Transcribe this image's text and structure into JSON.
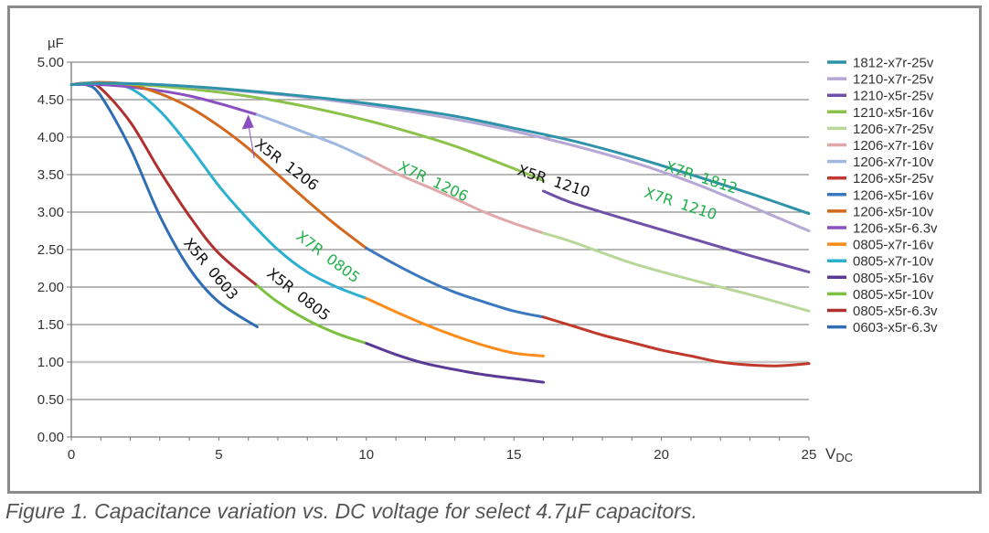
{
  "caption": "Figure 1. Capacitance variation vs. DC voltage for select 4.7µF capacitors.",
  "chart_data": {
    "type": "line",
    "title": "",
    "xlabel": "V",
    "xlabel_sub": "DC",
    "ylabel": "µF",
    "xlim": [
      0,
      25
    ],
    "ylim": [
      0,
      5
    ],
    "xticks": [
      0,
      5,
      10,
      15,
      20,
      25
    ],
    "xtick_labels": [
      "0",
      "5",
      "10",
      "15",
      "20",
      "25"
    ],
    "yticks": [
      0,
      0.5,
      1,
      1.5,
      2,
      2.5,
      3,
      3.5,
      4,
      4.5,
      5
    ],
    "ytick_labels": [
      "0.00",
      "0.50",
      "1.00",
      "1.50",
      "2.00",
      "2.50",
      "3.00",
      "3.50",
      "4.00",
      "4.50",
      "5.00"
    ],
    "grid": true,
    "legend_position": "right",
    "series": [
      {
        "name": "1812-x7r-25v",
        "color": "#2e93a8",
        "x": [
          0,
          1,
          3,
          5,
          7,
          9,
          11,
          13,
          15,
          17,
          19,
          21,
          23,
          25
        ],
        "y": [
          4.7,
          4.72,
          4.7,
          4.65,
          4.58,
          4.5,
          4.4,
          4.28,
          4.12,
          3.95,
          3.74,
          3.5,
          3.25,
          2.98
        ]
      },
      {
        "name": "1210-x7r-25v",
        "color": "#b5a8d4",
        "x": [
          0,
          1,
          3,
          5,
          7,
          9,
          11,
          13,
          15,
          17,
          19,
          21,
          23,
          25
        ],
        "y": [
          4.7,
          4.72,
          4.7,
          4.64,
          4.57,
          4.48,
          4.37,
          4.24,
          4.08,
          3.89,
          3.67,
          3.4,
          3.08,
          2.75
        ]
      },
      {
        "name": "1210-x5r-25v",
        "color": "#7050a8",
        "x": [
          16,
          17,
          19,
          21,
          23,
          25
        ],
        "y": [
          3.28,
          3.12,
          2.88,
          2.65,
          2.42,
          2.2
        ]
      },
      {
        "name": "1210-x5r-16v",
        "color": "#8bc34a",
        "x": [
          0,
          1,
          3,
          5,
          7,
          9,
          11,
          13,
          15,
          16
        ],
        "y": [
          4.7,
          4.72,
          4.68,
          4.6,
          4.48,
          4.32,
          4.12,
          3.88,
          3.58,
          3.42
        ]
      },
      {
        "name": "1206-x7r-25v",
        "color": "#b8d89a",
        "x": [
          16,
          17,
          19,
          21,
          23,
          25
        ],
        "y": [
          2.72,
          2.6,
          2.32,
          2.1,
          1.9,
          1.68
        ]
      },
      {
        "name": "1206-x7r-16v",
        "color": "#e0a8a8",
        "x": [
          10,
          11,
          12,
          13,
          14,
          15,
          16
        ],
        "y": [
          3.72,
          3.52,
          3.35,
          3.18,
          3.0,
          2.85,
          2.72
        ]
      },
      {
        "name": "1206-x7r-10v",
        "color": "#9fb8e0",
        "x": [
          6.3,
          7,
          8,
          9,
          10
        ],
        "y": [
          4.3,
          4.2,
          4.05,
          3.9,
          3.72
        ]
      },
      {
        "name": "1206-x5r-25v",
        "color": "#c0392b",
        "x": [
          16,
          17,
          18,
          19,
          20,
          21,
          22,
          23,
          24,
          25
        ],
        "y": [
          1.6,
          1.48,
          1.36,
          1.26,
          1.16,
          1.08,
          1.0,
          0.96,
          0.95,
          0.98
        ]
      },
      {
        "name": "1206-x5r-16v",
        "color": "#3a78c0",
        "x": [
          10,
          11,
          12,
          13,
          14,
          15,
          16
        ],
        "y": [
          2.52,
          2.3,
          2.1,
          1.93,
          1.8,
          1.68,
          1.6
        ]
      },
      {
        "name": "1206-x5r-10v",
        "color": "#d2691e",
        "x": [
          0,
          1,
          2,
          3,
          4,
          5,
          6,
          7,
          8,
          9,
          10
        ],
        "y": [
          4.7,
          4.73,
          4.7,
          4.58,
          4.4,
          4.15,
          3.85,
          3.5,
          3.15,
          2.82,
          2.52
        ]
      },
      {
        "name": "1206-x5r-6.3v",
        "color": "#8a4fc0",
        "x": [
          0,
          1,
          2,
          3,
          4,
          5,
          6.3
        ],
        "y": [
          4.7,
          4.7,
          4.67,
          4.62,
          4.55,
          4.45,
          4.3
        ]
      },
      {
        "name": "0805-x7r-16v",
        "color": "#ff8c1a",
        "x": [
          10,
          11,
          12,
          13,
          14,
          15,
          16
        ],
        "y": [
          1.85,
          1.67,
          1.5,
          1.35,
          1.22,
          1.12,
          1.08
        ]
      },
      {
        "name": "0805-x7r-10v",
        "color": "#2cb0d0",
        "x": [
          0,
          1,
          2,
          3,
          4,
          5,
          6,
          7,
          8,
          9,
          10
        ],
        "y": [
          4.7,
          4.73,
          4.65,
          4.35,
          3.88,
          3.35,
          2.9,
          2.5,
          2.2,
          2.0,
          1.85
        ]
      },
      {
        "name": "0805-x5r-16v",
        "color": "#5b3a96",
        "x": [
          10,
          11,
          12,
          13,
          14,
          15,
          16
        ],
        "y": [
          1.25,
          1.1,
          0.98,
          0.9,
          0.83,
          0.78,
          0.73
        ]
      },
      {
        "name": "0805-x5r-10v",
        "color": "#7cc040",
        "x": [
          6.3,
          7,
          8,
          9,
          10
        ],
        "y": [
          2.02,
          1.8,
          1.56,
          1.38,
          1.25
        ]
      },
      {
        "name": "0805-x5r-6.3v",
        "color": "#b03030",
        "x": [
          0,
          0.5,
          1,
          2,
          3,
          4,
          5,
          6.3
        ],
        "y": [
          4.7,
          4.72,
          4.65,
          4.2,
          3.55,
          2.95,
          2.45,
          2.02
        ]
      },
      {
        "name": "0603-x5r-6.3v",
        "color": "#2f6db5",
        "x": [
          0,
          0.5,
          1,
          2,
          3,
          4,
          5,
          6.3
        ],
        "y": [
          4.7,
          4.7,
          4.55,
          3.85,
          2.95,
          2.25,
          1.8,
          1.47
        ]
      }
    ],
    "annotations": [
      {
        "text": "X5R 0603",
        "color": "#111111",
        "x": 4.6,
        "y": 2.2,
        "angle": 50
      },
      {
        "text": "X5R 0805",
        "color": "#111111",
        "x": 7.6,
        "y": 1.85,
        "angle": 38
      },
      {
        "text": "X7R 0805",
        "color": "#22b04a",
        "x": 8.6,
        "y": 2.35,
        "angle": 37
      },
      {
        "text": "X5R 1206",
        "color": "#111111",
        "x": 7.2,
        "y": 3.58,
        "angle": 37
      },
      {
        "text": "X7R 1206",
        "color": "#22b04a",
        "x": 12.2,
        "y": 3.35,
        "angle": 25
      },
      {
        "text": "X5R 1210",
        "color": "#111111",
        "x": 16.3,
        "y": 3.35,
        "angle": 18
      },
      {
        "text": "X7R 1812",
        "color": "#22b04a",
        "x": 21.3,
        "y": 3.4,
        "angle": 18
      },
      {
        "text": "X7R 1210",
        "color": "#22b04a",
        "x": 20.6,
        "y": 3.05,
        "angle": 18
      }
    ],
    "arrow": {
      "from": [
        6.2,
        3.72
      ],
      "to": [
        6.0,
        4.3
      ],
      "color": "#8a4fc0"
    }
  }
}
